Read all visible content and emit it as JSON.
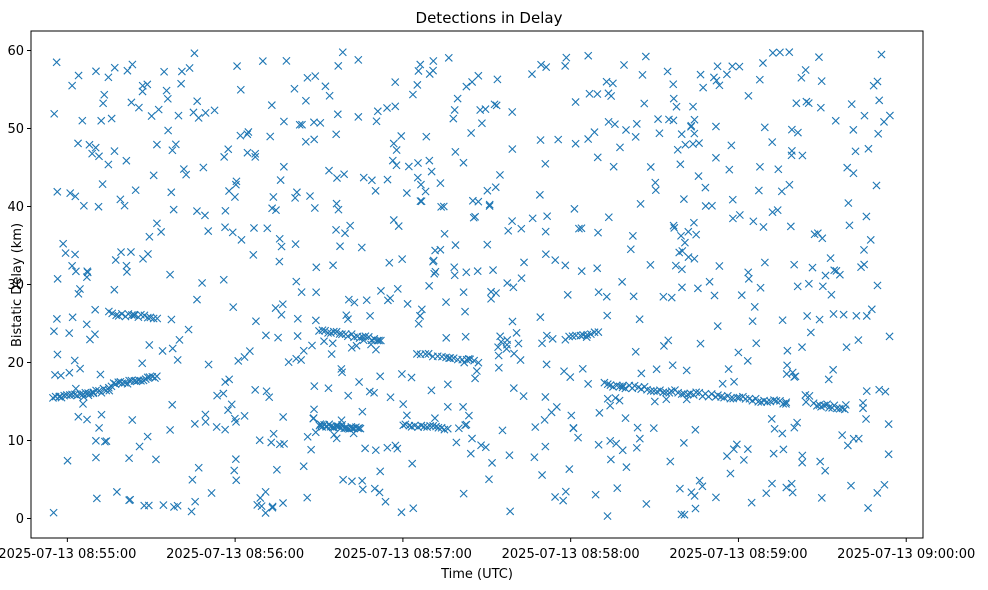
{
  "chart_data": {
    "type": "scatter",
    "title": "Detections in Delay",
    "xlabel": "Time (UTC)",
    "ylabel": "Bistatic Delay (km)",
    "x_axis_type": "datetime",
    "xlim": [
      "2025-07-13 08:54:47",
      "2025-07-13 09:00:06"
    ],
    "ylim": [
      -2.5,
      62.5
    ],
    "x_ticks": [
      "2025-07-13 08:55:00",
      "2025-07-13 08:56:00",
      "2025-07-13 08:57:00",
      "2025-07-13 08:58:00",
      "2025-07-13 08:59:00",
      "2025-07-13 09:00:00"
    ],
    "y_ticks": [
      0,
      10,
      20,
      30,
      40,
      50,
      60
    ],
    "grid": false,
    "legend": "none",
    "marker": "x",
    "color": "#1f77b4",
    "x_start": "2025-07-13 08:54:55",
    "x_end": "2025-07-13 08:59:55",
    "tracks": [
      {
        "x_start": "2025-07-13 08:54:55",
        "x_end": "2025-07-13 08:55:15",
        "y_start": 15.5,
        "y_end": 16.5,
        "points": 22
      },
      {
        "x_start": "2025-07-13 08:55:15",
        "x_end": "2025-07-13 08:55:32",
        "y_start": 17.0,
        "y_end": 18.3,
        "points": 22
      },
      {
        "x_start": "2025-07-13 08:55:15",
        "x_end": "2025-07-13 08:55:32",
        "y_start": 26.3,
        "y_end": 25.7,
        "points": 16
      },
      {
        "x_start": "2025-07-13 08:56:30",
        "x_end": "2025-07-13 08:56:52",
        "y_start": 24.2,
        "y_end": 22.8,
        "points": 22
      },
      {
        "x_start": "2025-07-13 08:57:05",
        "x_end": "2025-07-13 08:57:27",
        "y_start": 21.2,
        "y_end": 20.0,
        "points": 16
      },
      {
        "x_start": "2025-07-13 08:57:58",
        "x_end": "2025-07-13 08:58:10",
        "y_start": 23.0,
        "y_end": 24.0,
        "points": 10
      },
      {
        "x_start": "2025-07-13 08:58:12",
        "x_end": "2025-07-13 08:59:17",
        "y_start": 17.2,
        "y_end": 14.8,
        "points": 60
      },
      {
        "x_start": "2025-07-13 08:59:27",
        "x_end": "2025-07-13 08:59:37",
        "y_start": 14.6,
        "y_end": 14.2,
        "points": 12
      },
      {
        "x_start": "2025-07-13 08:56:30",
        "x_end": "2025-07-13 08:56:45",
        "y_start": 12.0,
        "y_end": 11.6,
        "points": 26
      },
      {
        "x_start": "2025-07-13 08:57:00",
        "x_end": "2025-07-13 08:57:16",
        "y_start": 12.0,
        "y_end": 11.6,
        "points": 16
      }
    ],
    "random_points": 820
  }
}
